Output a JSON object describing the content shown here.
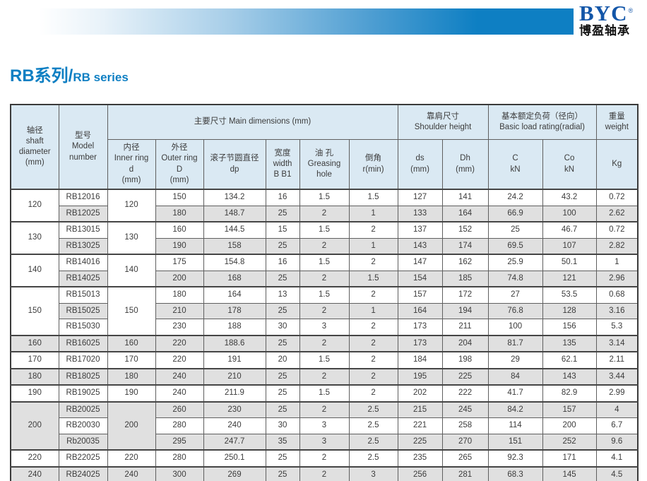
{
  "brand": {
    "logo_text": "BYC",
    "logo_registered": "®",
    "logo_subtext": "博盈轴承"
  },
  "page_title": {
    "zh": "RB系列/",
    "en": "RB series"
  },
  "colors": {
    "accent_blue": "#0e7fc3",
    "logo_blue": "#1356a8",
    "header_bg": "#dae9f3",
    "stripe_gray": "#e0e0e0",
    "text": "#3c3c3c"
  },
  "table": {
    "headers": {
      "shaft_diameter": "轴径\nshaft\ndiameter\n(mm)",
      "model_number": "型号\nModel\nnumber",
      "main_dimensions": "主要尺寸 Main dimensions (mm)",
      "inner_ring": "内径\nInner ring\nd\n(mm)",
      "outer_ring": "外径\nOuter ring\nD\n(mm)",
      "pitch_diameter": "滚子节圆直径\ndp",
      "width": "宽度\nwidth\nB B1",
      "greasing_hole": "油 孔\nGreasing\nhole",
      "chamfer": "倒角\nr(min)",
      "shoulder_height": "靠肩尺寸\nShoulder height",
      "ds": "ds\n(mm)",
      "dh": "Dh\n(mm)",
      "load_rating": "基本额定负荷（径向）\nBasic load rating(radial)",
      "c": "C\nkN",
      "co": "Co\nkN",
      "weight": "重量\nweight",
      "kg": "Kg"
    },
    "groups": [
      {
        "shaft": "120",
        "inner": "120",
        "rows": [
          {
            "model": "RB12016",
            "outer": "150",
            "dp": "134.2",
            "width": "16",
            "grease": "1.5",
            "chamfer": "1.5",
            "ds": "127",
            "dh": "141",
            "c": "24.2",
            "co": "43.2",
            "kg": "0.72"
          },
          {
            "model": "RB12025",
            "outer": "180",
            "dp": "148.7",
            "width": "25",
            "grease": "2",
            "chamfer": "1",
            "ds": "133",
            "dh": "164",
            "c": "66.9",
            "co": "100",
            "kg": "2.62"
          }
        ]
      },
      {
        "shaft": "130",
        "inner": "130",
        "rows": [
          {
            "model": "RB13015",
            "outer": "160",
            "dp": "144.5",
            "width": "15",
            "grease": "1.5",
            "chamfer": "2",
            "ds": "137",
            "dh": "152",
            "c": "25",
            "co": "46.7",
            "kg": "0.72"
          },
          {
            "model": "RB13025",
            "outer": "190",
            "dp": "158",
            "width": "25",
            "grease": "2",
            "chamfer": "1",
            "ds": "143",
            "dh": "174",
            "c": "69.5",
            "co": "107",
            "kg": "2.82"
          }
        ]
      },
      {
        "shaft": "140",
        "inner": "140",
        "rows": [
          {
            "model": "RB14016",
            "outer": "175",
            "dp": "154.8",
            "width": "16",
            "grease": "1.5",
            "chamfer": "2",
            "ds": "147",
            "dh": "162",
            "c": "25.9",
            "co": "50.1",
            "kg": "1"
          },
          {
            "model": "RB14025",
            "outer": "200",
            "dp": "168",
            "width": "25",
            "grease": "2",
            "chamfer": "1.5",
            "ds": "154",
            "dh": "185",
            "c": "74.8",
            "co": "121",
            "kg": "2.96"
          }
        ]
      },
      {
        "shaft": "150",
        "inner": "150",
        "rows": [
          {
            "model": "RB15013",
            "outer": "180",
            "dp": "164",
            "width": "13",
            "grease": "1.5",
            "chamfer": "2",
            "ds": "157",
            "dh": "172",
            "c": "27",
            "co": "53.5",
            "kg": "0.68"
          },
          {
            "model": "RB15025",
            "outer": "210",
            "dp": "178",
            "width": "25",
            "grease": "2",
            "chamfer": "1",
            "ds": "164",
            "dh": "194",
            "c": "76.8",
            "co": "128",
            "kg": "3.16"
          },
          {
            "model": "RB15030",
            "outer": "230",
            "dp": "188",
            "width": "30",
            "grease": "3",
            "chamfer": "2",
            "ds": "173",
            "dh": "211",
            "c": "100",
            "co": "156",
            "kg": "5.3"
          }
        ]
      },
      {
        "shaft": "160",
        "inner": "160",
        "rows": [
          {
            "model": "RB16025",
            "outer": "220",
            "dp": "188.6",
            "width": "25",
            "grease": "2",
            "chamfer": "2",
            "ds": "173",
            "dh": "204",
            "c": "81.7",
            "co": "135",
            "kg": "3.14"
          }
        ]
      },
      {
        "shaft": "170",
        "inner": "170",
        "rows": [
          {
            "model": "RB17020",
            "outer": "220",
            "dp": "191",
            "width": "20",
            "grease": "1.5",
            "chamfer": "2",
            "ds": "184",
            "dh": "198",
            "c": "29",
            "co": "62.1",
            "kg": "2.11"
          }
        ]
      },
      {
        "shaft": "180",
        "inner": "180",
        "rows": [
          {
            "model": "RB18025",
            "outer": "240",
            "dp": "210",
            "width": "25",
            "grease": "2",
            "chamfer": "2",
            "ds": "195",
            "dh": "225",
            "c": "84",
            "co": "143",
            "kg": "3.44"
          }
        ]
      },
      {
        "shaft": "190",
        "inner": "190",
        "rows": [
          {
            "model": "RB19025",
            "outer": "240",
            "dp": "211.9",
            "width": "25",
            "grease": "1.5",
            "chamfer": "2",
            "ds": "202",
            "dh": "222",
            "c": "41.7",
            "co": "82.9",
            "kg": "2.99"
          }
        ]
      },
      {
        "shaft": "200",
        "inner": "200",
        "rows": [
          {
            "model": "RB20025",
            "outer": "260",
            "dp": "230",
            "width": "25",
            "grease": "2",
            "chamfer": "2.5",
            "ds": "215",
            "dh": "245",
            "c": "84.2",
            "co": "157",
            "kg": "4"
          },
          {
            "model": "RB20030",
            "outer": "280",
            "dp": "240",
            "width": "30",
            "grease": "3",
            "chamfer": "2.5",
            "ds": "221",
            "dh": "258",
            "c": "114",
            "co": "200",
            "kg": "6.7"
          },
          {
            "model": "Rb20035",
            "outer": "295",
            "dp": "247.7",
            "width": "35",
            "grease": "3",
            "chamfer": "2.5",
            "ds": "225",
            "dh": "270",
            "c": "151",
            "co": "252",
            "kg": "9.6"
          }
        ]
      },
      {
        "shaft": "220",
        "inner": "220",
        "rows": [
          {
            "model": "RB22025",
            "outer": "280",
            "dp": "250.1",
            "width": "25",
            "grease": "2",
            "chamfer": "2.5",
            "ds": "235",
            "dh": "265",
            "c": "92.3",
            "co": "171",
            "kg": "4.1"
          }
        ]
      },
      {
        "shaft": "240",
        "inner": "240",
        "rows": [
          {
            "model": "RB24025",
            "outer": "300",
            "dp": "269",
            "width": "25",
            "grease": "2",
            "chamfer": "3",
            "ds": "256",
            "dh": "281",
            "c": "68.3",
            "co": "145",
            "kg": "4.5"
          }
        ]
      }
    ]
  }
}
